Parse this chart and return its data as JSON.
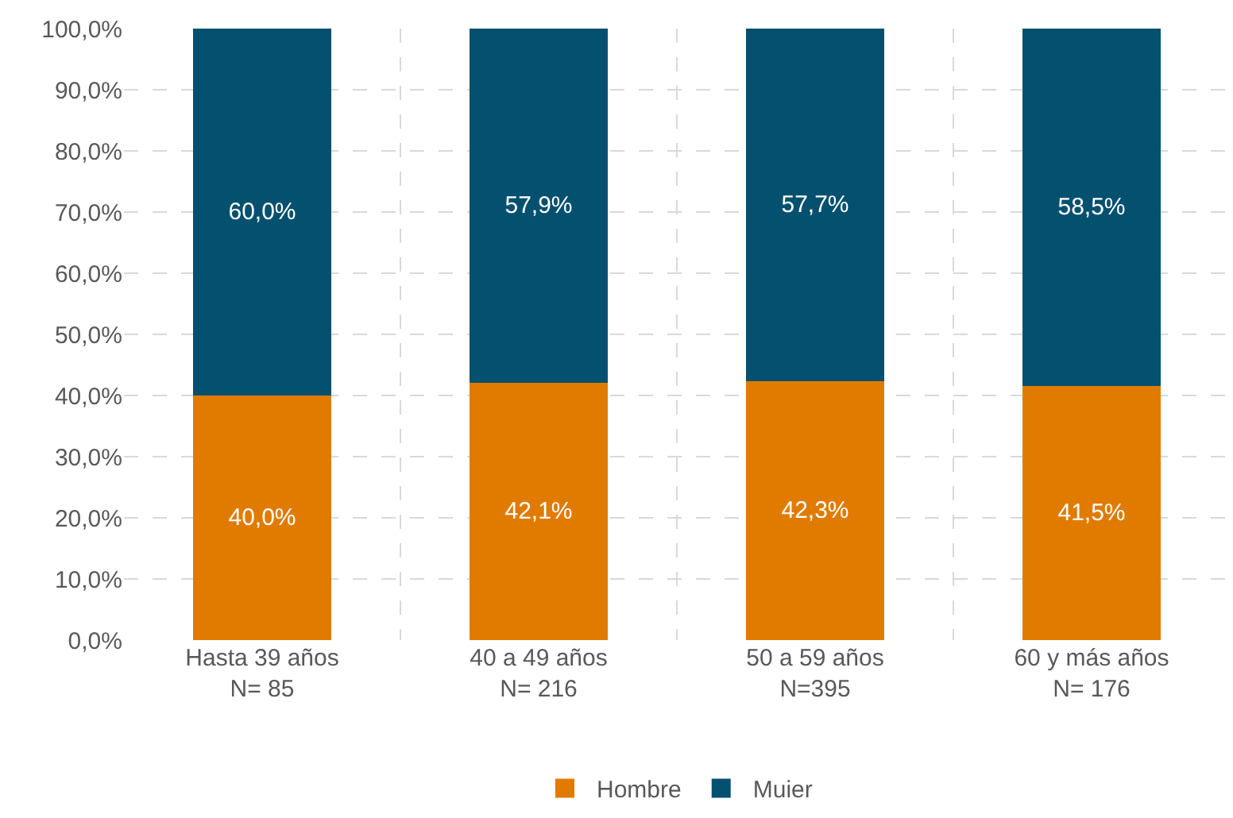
{
  "chart_data": {
    "type": "bar",
    "stacked": true,
    "categories": [
      "Hasta 39 años\nN= 85",
      "40 a 49 años\nN= 216",
      "50 a 59 años\nN=395",
      "60 y más años\nN= 176"
    ],
    "series": [
      {
        "name": "Hombre",
        "color": "#e07b00",
        "values": [
          40.0,
          42.1,
          42.3,
          41.5
        ],
        "value_labels": [
          "40,0%",
          "42,1%",
          "42,3%",
          "41,5%"
        ]
      },
      {
        "name": "Muier",
        "color": "#03506f",
        "values": [
          60.0,
          57.9,
          57.7,
          58.5
        ],
        "value_labels": [
          "60,0%",
          "57,9%",
          "57,7%",
          "58,5%"
        ]
      }
    ],
    "ylim": [
      0,
      100
    ],
    "yticks": [
      {
        "value": 0,
        "label": "0,0%"
      },
      {
        "value": 10,
        "label": "10,0%"
      },
      {
        "value": 20,
        "label": "20,0%"
      },
      {
        "value": 30,
        "label": "30,0%"
      },
      {
        "value": 40,
        "label": "40,0%"
      },
      {
        "value": 50,
        "label": "50,0%"
      },
      {
        "value": 60,
        "label": "60,0%"
      },
      {
        "value": 70,
        "label": "70,0%"
      },
      {
        "value": 80,
        "label": "80,0%"
      },
      {
        "value": 90,
        "label": "90,0%"
      },
      {
        "value": 100,
        "label": "100,0%"
      }
    ],
    "grid": true,
    "legend": "bottom"
  }
}
